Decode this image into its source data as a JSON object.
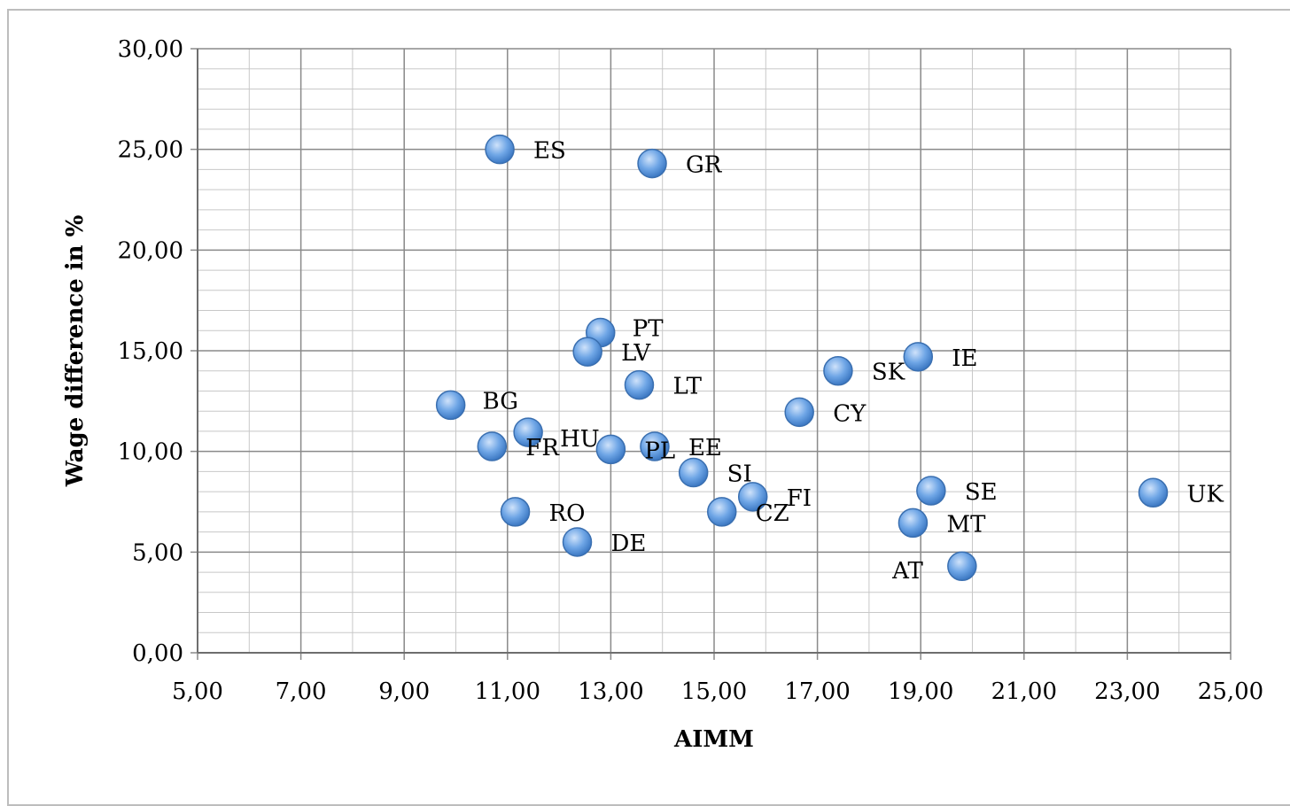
{
  "chart_data": {
    "type": "scatter",
    "title": "",
    "xlabel": "AIMM",
    "ylabel": "Wage difference in %",
    "xlim": [
      5,
      25
    ],
    "ylim": [
      0,
      30
    ],
    "x_ticks": [
      "5,00",
      "7,00",
      "9,00",
      "11,00",
      "13,00",
      "15,00",
      "17,00",
      "19,00",
      "21,00",
      "23,00",
      "25,00"
    ],
    "y_ticks": [
      "0,00",
      "5,00",
      "10,00",
      "15,00",
      "20,00",
      "25,00",
      "30,00"
    ],
    "grid": true,
    "marker_color": "#6fa6e6",
    "points": [
      {
        "label": "ES",
        "x": 10.85,
        "y": 25.0,
        "label_pos": "right"
      },
      {
        "label": "GR",
        "x": 13.8,
        "y": 24.3,
        "label_pos": "right"
      },
      {
        "label": "PT",
        "x": 12.8,
        "y": 15.9,
        "label_pos": "right-up"
      },
      {
        "label": "LV",
        "x": 12.55,
        "y": 14.95,
        "label_pos": "right"
      },
      {
        "label": "IE",
        "x": 18.95,
        "y": 14.7,
        "label_pos": "right"
      },
      {
        "label": "SK",
        "x": 17.4,
        "y": 14.0,
        "label_pos": "right"
      },
      {
        "label": "LT",
        "x": 13.55,
        "y": 13.3,
        "label_pos": "right"
      },
      {
        "label": "BG",
        "x": 9.9,
        "y": 12.3,
        "label_pos": "right-up"
      },
      {
        "label": "CY",
        "x": 16.65,
        "y": 11.95,
        "label_pos": "right"
      },
      {
        "label": "HU",
        "x": 11.4,
        "y": 10.95,
        "label_pos": "right-down"
      },
      {
        "label": "FR",
        "x": 10.7,
        "y": 10.25,
        "label_pos": "right"
      },
      {
        "label": "PL",
        "x": 13.0,
        "y": 10.1,
        "label_pos": "right"
      },
      {
        "label": "EE",
        "x": 13.85,
        "y": 10.25,
        "label_pos": "right"
      },
      {
        "label": "SI",
        "x": 14.6,
        "y": 8.95,
        "label_pos": "right"
      },
      {
        "label": "FI",
        "x": 15.75,
        "y": 7.75,
        "label_pos": "right"
      },
      {
        "label": "SE",
        "x": 19.2,
        "y": 8.05,
        "label_pos": "right"
      },
      {
        "label": "UK",
        "x": 23.5,
        "y": 7.95,
        "label_pos": "right"
      },
      {
        "label": "RO",
        "x": 11.15,
        "y": 7.0,
        "label_pos": "right"
      },
      {
        "label": "CZ",
        "x": 15.15,
        "y": 7.0,
        "label_pos": "right"
      },
      {
        "label": "MT",
        "x": 18.85,
        "y": 6.45,
        "label_pos": "right"
      },
      {
        "label": "DE",
        "x": 12.35,
        "y": 5.5,
        "label_pos": "right"
      },
      {
        "label": "AT",
        "x": 19.8,
        "y": 4.3,
        "label_pos": "left"
      }
    ]
  }
}
